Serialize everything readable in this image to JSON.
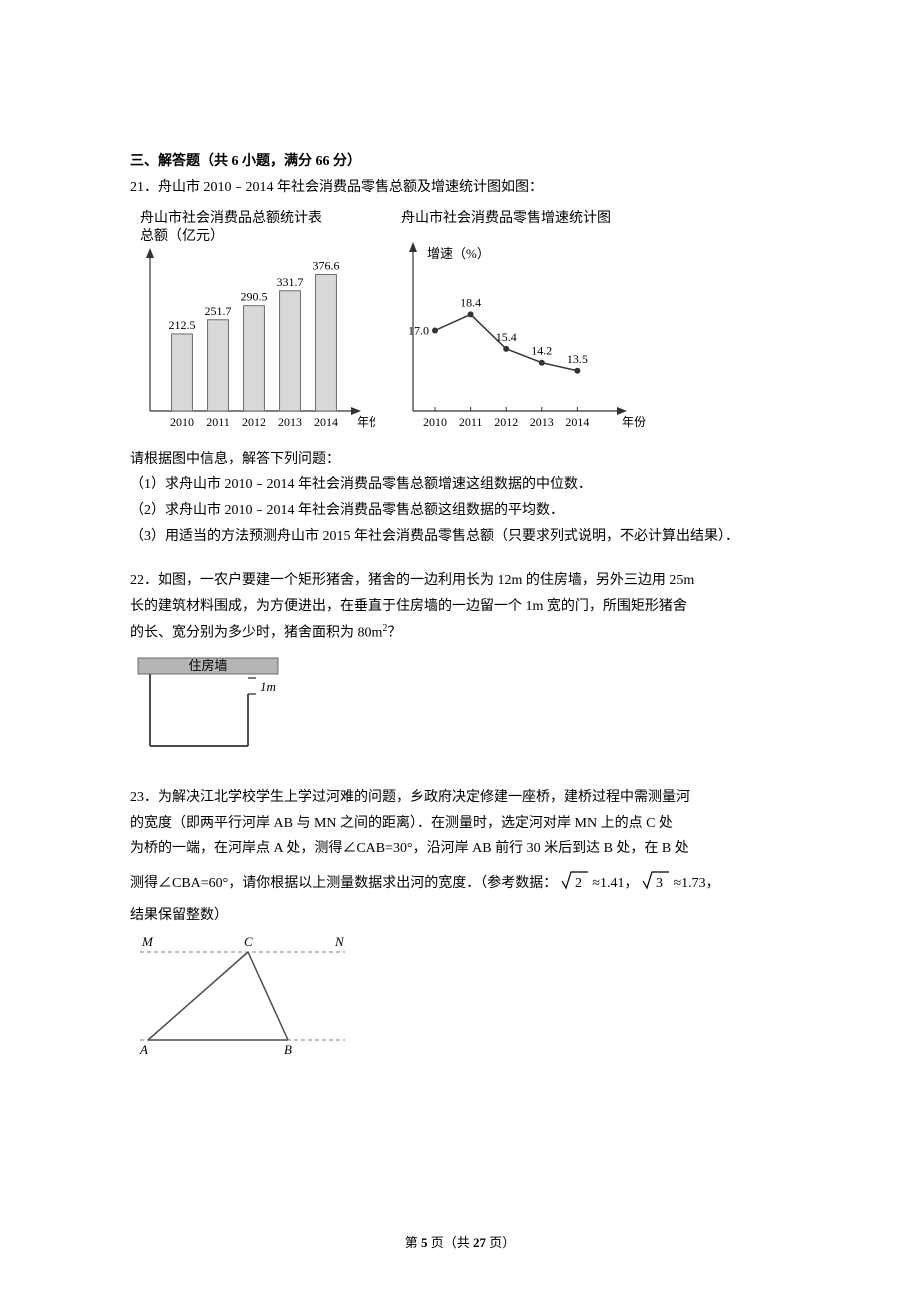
{
  "section_heading": "三、解答题（共 6 小题，满分 66 分）",
  "q21": {
    "num_text": "21．舟山市 2010﹣2014 年社会消费品零售总额及增速统计图如图：",
    "bar_chart": {
      "title_line1": "舟山市社会消费品总额统计表",
      "title_line2": "总额（亿元）",
      "categories": [
        "2010",
        "2011",
        "2012",
        "2013",
        "2014"
      ],
      "values": [
        212.5,
        251.7,
        290.5,
        331.7,
        376.6
      ],
      "labels": [
        "212.5",
        "251.7",
        "290.5",
        "331.7",
        "376.6"
      ],
      "x_label": "年份",
      "y_max": 400,
      "bar_fill": "#d9d9d9",
      "bar_stroke": "#6b6b6b",
      "axis_color": "#333333",
      "title_fontsize": 14,
      "label_fontsize": 12,
      "tick_fontsize": 12
    },
    "line_chart": {
      "title": "舟山市社会消费品零售增速统计图",
      "y_label": "增速（%）",
      "categories": [
        "2010",
        "2011",
        "2012",
        "2013",
        "2014"
      ],
      "values": [
        17.0,
        18.4,
        15.4,
        14.2,
        13.5
      ],
      "labels": [
        "17.0",
        "18.4",
        "15.4",
        "14.2",
        "13.5"
      ],
      "x_label": "年份",
      "y_min": 10,
      "y_max": 20,
      "line_color": "#333333",
      "marker_color": "#333333",
      "axis_color": "#333333",
      "title_fontsize": 14,
      "label_fontsize": 12,
      "tick_fontsize": 12
    },
    "after_fig": "请根据图中信息，解答下列问题：",
    "sub1": "（1）求舟山市 2010﹣2014 年社会消费品零售总额增速这组数据的中位数．",
    "sub2": "（2）求舟山市 2010﹣2014 年社会消费品零售总额这组数据的平均数．",
    "sub3": "（3）用适当的方法预测舟山市 2015 年社会消费品零售总额（只要求列式说明，不必计算出结果）．"
  },
  "q22": {
    "line1": "22．如图，一农户要建一个矩形猪舍，猪舍的一边利用长为 12m 的住房墙，另外三边用 25m",
    "line2": "长的建筑材料围成，为方便进出，在垂直于住房墙的一边留一个 1m 宽的门，所围矩形猪舍",
    "line3_prefix": "的长、宽分别为多少时，猪舍面积为 80m",
    "line3_suffix": "？",
    "diagram": {
      "wall_label": "住房墙",
      "door_label": "1m",
      "wall_fill": "#b5b5b5",
      "wall_stroke": "#6b6b6b",
      "line_color": "#4d4d4d",
      "text_fontsize": 13
    }
  },
  "q23": {
    "line1": "23．为解决江北学校学生上学过河难的问题，乡政府决定修建一座桥，建桥过程中需测量河",
    "line2": "的宽度（即两平行河岸 AB 与 MN 之间的距离）．在测量时，选定河对岸 MN 上的点 C 处",
    "line3": "为桥的一端，在河岸点 A 处，测得∠CAB=30°，沿河岸 AB 前行 30 米后到达 B 处，在 B 处",
    "line4_a": "测得∠CBA=60°，请你根据以上测量数据求出河的宽度．（参考数据：",
    "sqrt2_val": "2",
    "approx2": "≈1.41，",
    "sqrt3_val": "3",
    "approx3": "≈1.73，",
    "line5": "结果保留整数）",
    "diagram": {
      "M": "M",
      "C": "C",
      "N": "N",
      "A": "A",
      "B": "B",
      "line_color": "#4d4d4d",
      "dash_color": "#808080",
      "text_fontsize": 13
    }
  },
  "footer_a": "第 ",
  "footer_b": "5",
  "footer_c": " 页（共 ",
  "footer_d": "27",
  "footer_e": " 页）"
}
